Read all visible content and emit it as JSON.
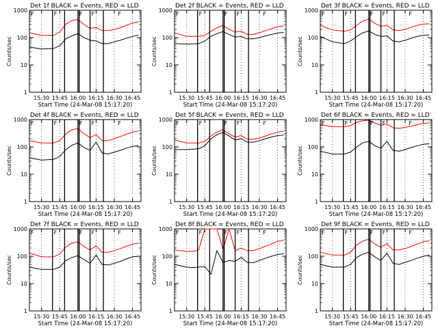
{
  "figure": {
    "x_tick_labels": [
      "15:30",
      "15:45",
      "16:00",
      "16:15",
      "16:30",
      "16:45"
    ],
    "y_tick_labels": [
      "1",
      "10",
      "100",
      "1000"
    ],
    "ylabel": "Counts/sec",
    "xlabel": "Start Time (24-Mar-08 15:17:20)",
    "flag_label": "F",
    "colors": {
      "events": "#000000",
      "lld": "#ff0000",
      "axes": "#000000"
    }
  },
  "chart_data": [
    {
      "type": "line",
      "title": "Det 1f BLACK = Events, RED = LLD",
      "xlabel": "Start Time (24-Mar-08 15:17:20)",
      "ylabel": "Counts/sec",
      "yscale": "log",
      "ylim": [
        1,
        1000
      ],
      "x": [
        "15:20",
        "15:30",
        "15:40",
        "15:45",
        "15:50",
        "15:55",
        "16:00",
        "16:05",
        "16:10",
        "16:15",
        "16:20",
        "16:25",
        "16:30",
        "16:35",
        "16:40",
        "16:45",
        "16:50"
      ],
      "series": [
        {
          "color": "black",
          "values": [
            45,
            38,
            40,
            50,
            90,
            115,
            140,
            100,
            80,
            75,
            60,
            60,
            70,
            80,
            95,
            110,
            125
          ]
        },
        {
          "color": "red",
          "values": [
            150,
            120,
            120,
            160,
            310,
            420,
            460,
            300,
            220,
            230,
            180,
            180,
            200,
            230,
            280,
            340,
            380
          ]
        }
      ]
    },
    {
      "type": "line",
      "title": "Det 2f BLACK = Events, RED = LLD",
      "xlabel": "Start Time (24-Mar-08 15:17:20)",
      "ylabel": "Counts/sec",
      "yscale": "log",
      "ylim": [
        1,
        1000
      ],
      "x": [
        "15:20",
        "15:30",
        "15:40",
        "15:45",
        "15:50",
        "15:55",
        "16:00",
        "16:05",
        "16:10",
        "16:15",
        "16:20",
        "16:25",
        "16:30",
        "16:35",
        "16:40",
        "16:45",
        "16:50"
      ],
      "series": [
        {
          "color": "black",
          "values": [
            60,
            58,
            60,
            75,
            110,
            140,
            165,
            130,
            105,
            110,
            90,
            90,
            100,
            115,
            130,
            145,
            155
          ]
        },
        {
          "color": "red",
          "values": [
            150,
            110,
            110,
            120,
            170,
            230,
            280,
            200,
            160,
            170,
            130,
            130,
            150,
            180,
            210,
            250,
            270
          ]
        }
      ]
    },
    {
      "type": "line",
      "title": "Det 3f BLACK = Events, RED = LLD",
      "xlabel": "Start Time (24-Mar-08 15:17:20)",
      "ylabel": "Counts/sec",
      "yscale": "log",
      "ylim": [
        1,
        1000
      ],
      "x": [
        "15:20",
        "15:30",
        "15:40",
        "15:45",
        "15:50",
        "15:55",
        "16:00",
        "16:05",
        "16:10",
        "16:15",
        "16:20",
        "16:25",
        "16:30",
        "16:35",
        "16:40",
        "16:45",
        "16:50"
      ],
      "series": [
        {
          "color": "black",
          "values": [
            110,
            70,
            60,
            75,
            110,
            150,
            175,
            130,
            110,
            115,
            75,
            70,
            80,
            95,
            110,
            120,
            125
          ]
        },
        {
          "color": "red",
          "values": [
            280,
            190,
            170,
            190,
            280,
            400,
            480,
            330,
            260,
            280,
            190,
            180,
            200,
            240,
            280,
            310,
            320
          ]
        }
      ]
    },
    {
      "type": "line",
      "title": "Det 4f BLACK = Events, RED = LLD",
      "xlabel": "Start Time (24-Mar-08 15:17:20)",
      "ylabel": "Counts/sec",
      "yscale": "log",
      "ylim": [
        1,
        1000
      ],
      "x": [
        "15:20",
        "15:30",
        "15:40",
        "15:45",
        "15:50",
        "15:55",
        "16:00",
        "16:05",
        "16:10",
        "16:15",
        "16:20",
        "16:25",
        "16:30",
        "16:35",
        "16:40",
        "16:45",
        "16:50"
      ],
      "series": [
        {
          "color": "black",
          "values": [
            40,
            33,
            35,
            45,
            80,
            115,
            140,
            95,
            75,
            150,
            60,
            55,
            65,
            75,
            90,
            105,
            110
          ]
        },
        {
          "color": "red",
          "values": [
            170,
            140,
            140,
            170,
            300,
            420,
            480,
            300,
            220,
            280,
            170,
            170,
            200,
            240,
            290,
            350,
            380
          ]
        }
      ]
    },
    {
      "type": "line",
      "title": "Det 5f BLACK = Events, RED = LLD",
      "xlabel": "Start Time (24-Mar-08 15:17:20)",
      "ylabel": "Counts/sec",
      "yscale": "log",
      "ylim": [
        1,
        1000
      ],
      "x": [
        "15:20",
        "15:30",
        "15:40",
        "15:45",
        "15:50",
        "15:55",
        "16:00",
        "16:05",
        "16:10",
        "16:15",
        "16:20",
        "16:25",
        "16:30",
        "16:35",
        "16:40",
        "16:45",
        "16:50"
      ],
      "series": [
        {
          "color": "black",
          "values": [
            80,
            80,
            85,
            110,
            200,
            280,
            340,
            250,
            180,
            200,
            150,
            150,
            170,
            200,
            230,
            260,
            270
          ]
        },
        {
          "color": "red",
          "values": [
            180,
            140,
            140,
            160,
            250,
            350,
            420,
            300,
            230,
            260,
            190,
            190,
            210,
            250,
            300,
            350,
            370
          ]
        }
      ]
    },
    {
      "type": "line",
      "title": "Det 6f BLACK = Events, RED = LLD",
      "xlabel": "Start Time (24-Mar-08 15:17:20)",
      "ylabel": "Counts/sec",
      "yscale": "log",
      "ylim": [
        1,
        1000
      ],
      "x": [
        "15:20",
        "15:30",
        "15:40",
        "15:45",
        "15:50",
        "15:55",
        "16:00",
        "16:05",
        "16:10",
        "16:15",
        "16:20",
        "16:25",
        "16:30",
        "16:35",
        "16:40",
        "16:45",
        "16:50"
      ],
      "series": [
        {
          "color": "black",
          "values": [
            70,
            55,
            55,
            65,
            100,
            140,
            160,
            110,
            90,
            160,
            75,
            70,
            80,
            95,
            110,
            125,
            130
          ]
        },
        {
          "color": "red",
          "values": [
            650,
            550,
            550,
            600,
            800,
            900,
            950,
            750,
            620,
            700,
            500,
            480,
            520,
            580,
            650,
            720,
            760
          ]
        }
      ]
    },
    {
      "type": "line",
      "title": "Det 7f BLACK = Events, RED = LLD",
      "xlabel": "Start Time (24-Mar-08 15:17:20)",
      "ylabel": "Counts/sec",
      "yscale": "log",
      "ylim": [
        1,
        1000
      ],
      "x": [
        "15:20",
        "15:30",
        "15:40",
        "15:45",
        "15:50",
        "15:55",
        "16:00",
        "16:05",
        "16:10",
        "16:15",
        "16:20",
        "16:25",
        "16:30",
        "16:35",
        "16:40",
        "16:45",
        "16:50"
      ],
      "series": [
        {
          "color": "black",
          "values": [
            40,
            33,
            33,
            40,
            70,
            90,
            105,
            75,
            55,
            110,
            50,
            48,
            55,
            65,
            80,
            95,
            100
          ]
        },
        {
          "color": "red",
          "values": [
            130,
            95,
            95,
            120,
            220,
            300,
            340,
            230,
            170,
            240,
            140,
            140,
            160,
            190,
            230,
            280,
            300
          ]
        }
      ]
    },
    {
      "type": "line",
      "title": "Det 8f BLACK = Events, RED = LLD",
      "xlabel": "Start Time (24-Mar-08 15:17:20)",
      "ylabel": "Counts/sec",
      "yscale": "log",
      "ylim": [
        1,
        1000
      ],
      "x": [
        "15:20",
        "15:30",
        "15:35",
        "15:40",
        "15:45",
        "15:50",
        "15:55",
        "16:00",
        "16:05",
        "16:10",
        "16:15",
        "16:20",
        "16:25",
        "16:30",
        "16:35",
        "16:40",
        "16:45",
        "16:50"
      ],
      "series": [
        {
          "color": "black",
          "values": [
            50,
            40,
            38,
            40,
            42,
            22,
            160,
            60,
            70,
            65,
            90,
            60,
            58,
            70,
            85,
            100,
            115,
            125
          ]
        },
        {
          "color": "red",
          "values": [
            170,
            150,
            150,
            170,
            1000,
            1000,
            1000,
            180,
            1000,
            160,
            200,
            160,
            160,
            190,
            230,
            280,
            350,
            380
          ]
        }
      ]
    },
    {
      "type": "line",
      "title": "Det 9f BLACK = Events, RED = LLD",
      "xlabel": "Start Time (24-Mar-08 15:17:20)",
      "ylabel": "Counts/sec",
      "yscale": "log",
      "ylim": [
        1,
        1000
      ],
      "x": [
        "15:20",
        "15:30",
        "15:40",
        "15:45",
        "15:50",
        "15:55",
        "16:00",
        "16:05",
        "16:10",
        "16:15",
        "16:20",
        "16:25",
        "16:30",
        "16:35",
        "16:40",
        "16:45",
        "16:50"
      ],
      "series": [
        {
          "color": "black",
          "values": [
            50,
            40,
            40,
            50,
            90,
            120,
            140,
            95,
            70,
            130,
            55,
            50,
            60,
            70,
            85,
            100,
            110
          ]
        },
        {
          "color": "red",
          "values": [
            140,
            110,
            110,
            140,
            260,
            360,
            420,
            280,
            210,
            290,
            170,
            170,
            190,
            230,
            280,
            340,
            370
          ]
        }
      ]
    }
  ]
}
